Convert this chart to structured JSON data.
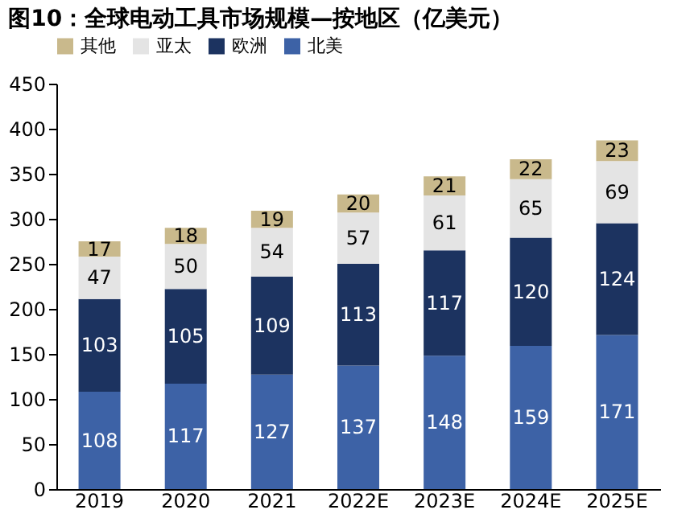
{
  "chart_data": {
    "type": "bar",
    "stacked": true,
    "title": "图10：全球电动工具市场规模—按地区（亿美元）",
    "categories": [
      "2019",
      "2020",
      "2021",
      "2022E",
      "2023E",
      "2024E",
      "2025E"
    ],
    "series": [
      {
        "name": "北美",
        "color": "#3d62a6",
        "values": [
          108,
          117,
          127,
          137,
          148,
          159,
          171
        ]
      },
      {
        "name": "欧洲",
        "color": "#1c3360",
        "values": [
          103,
          105,
          109,
          113,
          117,
          120,
          124
        ]
      },
      {
        "name": "亚太",
        "color": "#e4e4e4",
        "values": [
          47,
          50,
          54,
          57,
          61,
          65,
          69
        ]
      },
      {
        "name": "其他",
        "color": "#c9b98c",
        "values": [
          17,
          18,
          19,
          20,
          21,
          22,
          23
        ]
      }
    ],
    "ylim": [
      0,
      450
    ],
    "yticks": [
      0,
      50,
      100,
      150,
      200,
      250,
      300,
      350,
      400,
      450
    ],
    "grid": false,
    "legend": "top",
    "data_labels": true
  }
}
